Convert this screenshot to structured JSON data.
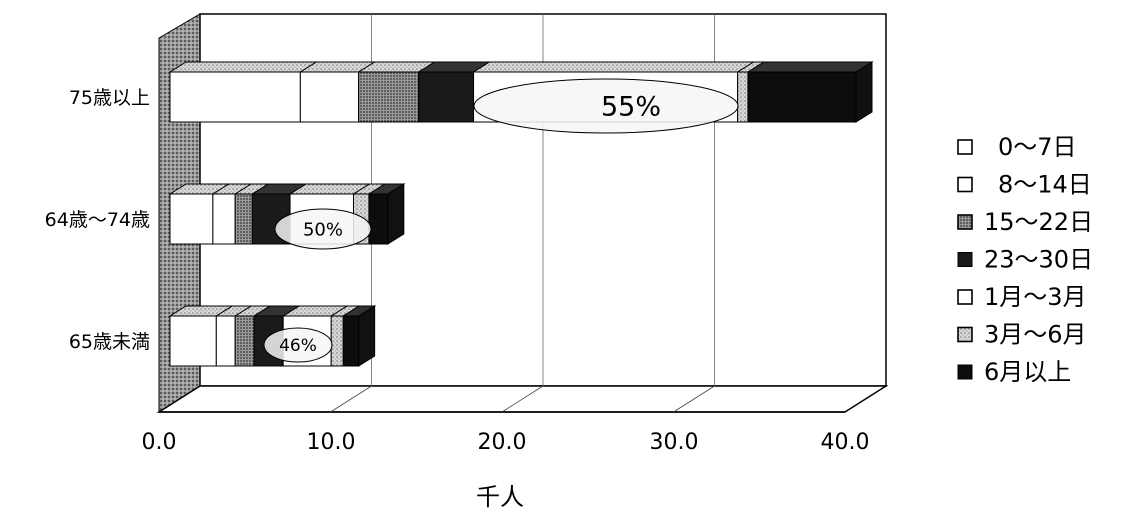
{
  "chart_data": {
    "type": "bar",
    "orientation": "horizontal",
    "stacked": true,
    "three_d": true,
    "xlabel": "千人",
    "xlim": [
      0,
      40
    ],
    "xticks": [
      "0.0",
      "10.0",
      "20.0",
      "30.0",
      "40.0"
    ],
    "grid": true,
    "legend_position": "right",
    "categories": [
      "75歳以上",
      "64歳～74歳",
      "65歳未満"
    ],
    "series": [
      {
        "name": "0～7日",
        "color": "#ffffff",
        "values": [
          7.6,
          2.5,
          2.7
        ]
      },
      {
        "name": "8～14日",
        "color": "#ffffff",
        "values": [
          3.4,
          1.3,
          1.1
        ]
      },
      {
        "name": "15～22日",
        "color": "#8a8a8a",
        "values": [
          3.5,
          1.0,
          1.1
        ]
      },
      {
        "name": "23～30日",
        "color": "#1a1a1a",
        "values": [
          3.2,
          2.2,
          1.7
        ]
      },
      {
        "name": "1月～3月",
        "color": "#ffffff",
        "values": [
          15.4,
          3.7,
          2.8
        ]
      },
      {
        "name": "3月～6月",
        "color": "#c8c8c8",
        "values": [
          0.6,
          0.9,
          0.7
        ]
      },
      {
        "name": "6月以上",
        "color": "#0d0d0d",
        "values": [
          6.3,
          1.1,
          0.9
        ]
      }
    ],
    "annotations": [
      {
        "category": "75歳以上",
        "text": "55%"
      },
      {
        "category": "64歳～74歳",
        "text": "50%"
      },
      {
        "category": "65歳未満",
        "text": "46%"
      }
    ]
  }
}
